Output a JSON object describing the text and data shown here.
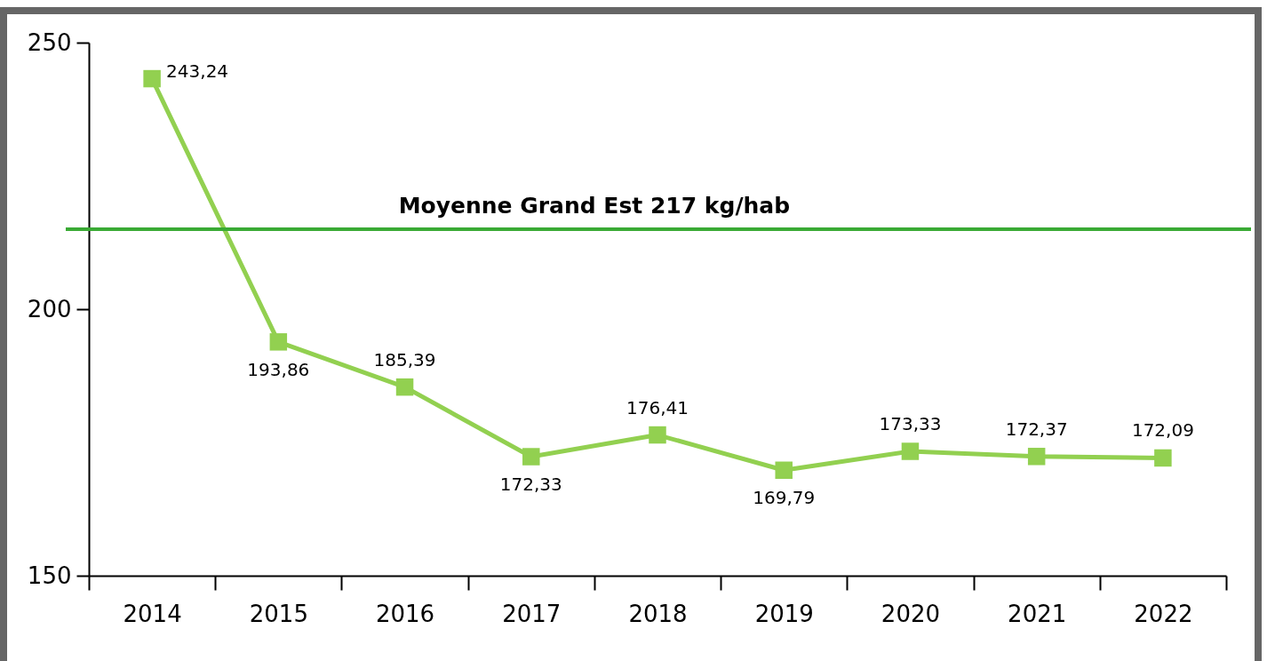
{
  "chart_data": {
    "type": "line",
    "categories": [
      "2014",
      "2015",
      "2016",
      "2017",
      "2018",
      "2019",
      "2020",
      "2021",
      "2022"
    ],
    "series": [
      {
        "color": "#92d050",
        "values": [
          243.24,
          193.86,
          185.39,
          172.33,
          176.41,
          169.79,
          173.33,
          172.37,
          172.09
        ],
        "value_labels": [
          "243,24",
          "193,86",
          "185,39",
          "172,33",
          "176,41",
          "169,79",
          "173,33",
          "172,37",
          "172,09"
        ]
      }
    ],
    "ylim": [
      150,
      250
    ],
    "yticks": [
      150,
      200,
      250
    ],
    "grid": false,
    "marker": "square",
    "line_style": "solid",
    "ref_lines": [
      {
        "axis": "y",
        "value": 215,
        "label": "Moyenne Grand Est 217 kg/hab",
        "color": "#3aaa35"
      }
    ]
  }
}
